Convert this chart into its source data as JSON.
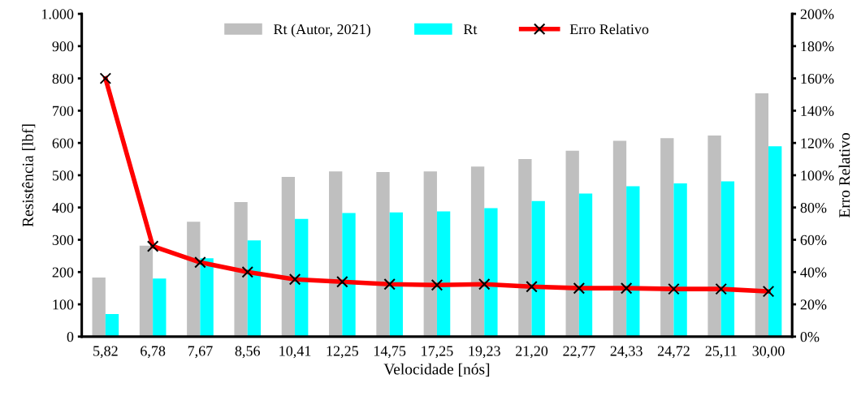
{
  "chart_data": {
    "type": "bar",
    "xlabel": "Velocidade [nós]",
    "ylabel": "Resistência [lbf]",
    "y2label": "Erro Relativo",
    "categories": [
      "5,82",
      "6,78",
      "7,67",
      "8,56",
      "10,41",
      "12,25",
      "14,75",
      "17,25",
      "19,23",
      "21,20",
      "22,77",
      "24,33",
      "24,72",
      "25,11",
      "30,00"
    ],
    "series": [
      {
        "name": "Rt (Autor, 2021)",
        "color": "#bfbfbf",
        "values": [
          183,
          282,
          356,
          417,
          495,
          512,
          510,
          512,
          527,
          550,
          576,
          607,
          615,
          623,
          754
        ]
      },
      {
        "name": "Rt",
        "color": "#00ffff",
        "values": [
          70,
          180,
          243,
          298,
          365,
          383,
          385,
          388,
          398,
          420,
          443,
          466,
          475,
          481,
          590
        ]
      },
      {
        "name": "Erro Relativo",
        "type": "line",
        "axis": "y2",
        "color": "#ff0000",
        "marker": "cross",
        "line_style": "solid",
        "values": [
          160,
          56,
          46,
          40,
          35.5,
          34,
          32.5,
          32,
          32.5,
          31,
          30,
          30,
          29.5,
          29.5,
          28
        ]
      }
    ],
    "ylim": [
      0,
      1000
    ],
    "yticks": [
      0,
      100,
      200,
      300,
      400,
      500,
      600,
      700,
      800,
      900,
      {
        "value": 1000,
        "label": "1.000"
      }
    ],
    "y2lim": [
      0,
      200
    ],
    "y2ticks": [
      {
        "value": 0,
        "label": "0%"
      },
      {
        "value": 20,
        "label": "20%"
      },
      {
        "value": 40,
        "label": "40%"
      },
      {
        "value": 60,
        "label": "60%"
      },
      {
        "value": 80,
        "label": "80%"
      },
      {
        "value": 100,
        "label": "100%"
      },
      {
        "value": 120,
        "label": "120%"
      },
      {
        "value": 140,
        "label": "140%"
      },
      {
        "value": 160,
        "label": "160%"
      },
      {
        "value": 180,
        "label": "180%"
      },
      {
        "value": 200,
        "label": "200%"
      }
    ],
    "grid": false,
    "legend": "top"
  }
}
